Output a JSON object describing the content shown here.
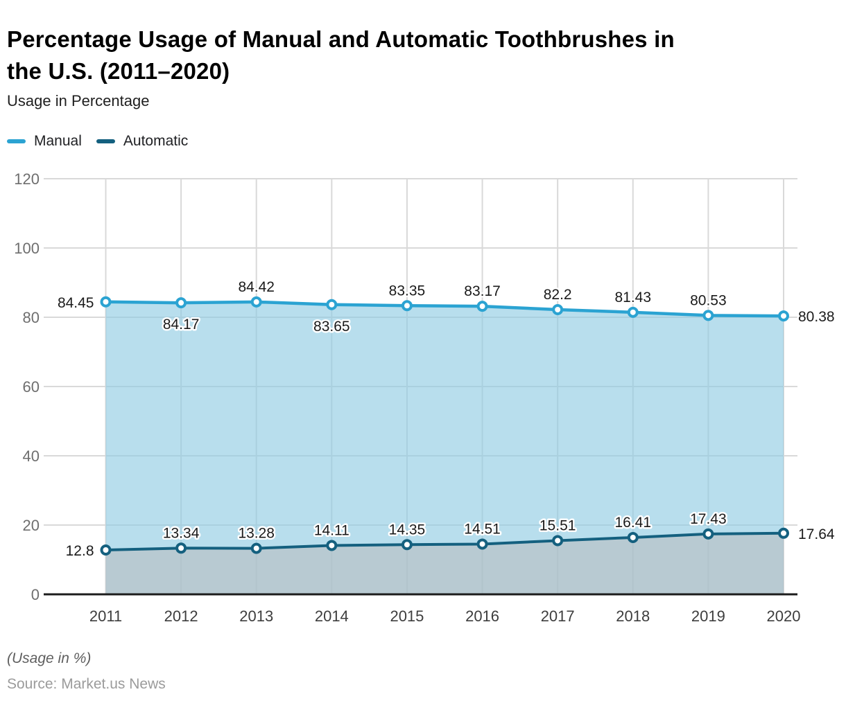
{
  "header": {
    "title": "Percentage Usage of Manual and Automatic Toothbrushes in the U.S. (2011–2020)",
    "title_lines": [
      "Percentage Usage of Manual and Automatic Toothbrushes in",
      "the U.S. (2011–2020)"
    ],
    "subtitle": "Usage in Percentage"
  },
  "legend": {
    "items": [
      {
        "label": "Manual",
        "color": "#2BA3D2"
      },
      {
        "label": "Automatic",
        "color": "#14607F"
      }
    ]
  },
  "chart_data": {
    "type": "area",
    "title": "Percentage Usage of Manual and Automatic Toothbrushes in the U.S. (2011–2020)",
    "xlabel": "",
    "ylabel": "Usage in Percentage",
    "categories": [
      "2011",
      "2012",
      "2013",
      "2014",
      "2015",
      "2016",
      "2017",
      "2018",
      "2019",
      "2020"
    ],
    "series": [
      {
        "name": "Manual",
        "values": [
          84.45,
          84.17,
          84.42,
          83.65,
          83.35,
          83.17,
          82.2,
          81.43,
          80.53,
          80.38
        ],
        "label_positions": [
          "left",
          "below",
          "above",
          "below",
          "above",
          "above",
          "above",
          "above",
          "above",
          "right"
        ],
        "line_color": "#2BA3D2",
        "fill_color": "rgba(140,201,226,0.62)"
      },
      {
        "name": "Automatic",
        "values": [
          12.8,
          13.34,
          13.28,
          14.11,
          14.35,
          14.51,
          15.51,
          16.41,
          17.43,
          17.64
        ],
        "label_positions": [
          "left",
          "above",
          "above",
          "above",
          "above",
          "above",
          "above",
          "above",
          "above",
          "right"
        ],
        "line_color": "#14607F",
        "fill_color": "rgba(184,186,187,0.55)"
      }
    ],
    "ylim": [
      0,
      120
    ],
    "yticks": [
      0,
      20,
      40,
      60,
      80,
      100,
      120
    ],
    "grid": true,
    "legend_position": "top-left"
  },
  "footer": {
    "note": "(Usage in %)",
    "source": "Source: Market.us News"
  }
}
